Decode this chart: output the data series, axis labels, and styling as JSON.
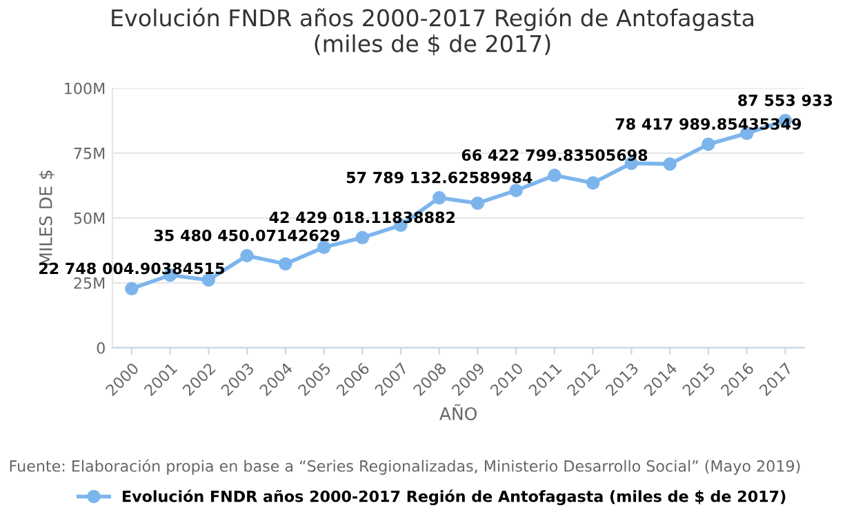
{
  "chart_data": {
    "type": "line",
    "title": "Evolución FNDR años 2000-2017 Región de Antofagasta\n(miles de $ de 2017)",
    "xlabel": "AÑO",
    "ylabel": "MILES DE $",
    "categories": [
      "2000",
      "2001",
      "2002",
      "2003",
      "2004",
      "2005",
      "2006",
      "2007",
      "2008",
      "2009",
      "2010",
      "2011",
      "2012",
      "2013",
      "2014",
      "2015",
      "2016",
      "2017"
    ],
    "series": [
      {
        "name": "Evolución FNDR años 2000-2017 Región de Antofagasta (miles de $ de 2017)",
        "color": "#7cb5ec",
        "values": [
          22748004.90384515,
          28000000,
          26100000,
          35480450.07142629,
          32300000,
          38700000,
          42429018.11838882,
          47200000,
          57789132.62589984,
          55700000,
          60600000,
          66422799.83505698,
          63500000,
          71100000,
          70800000,
          78417989.85435349,
          82600000,
          87553933
        ],
        "value_labels": [
          "22 748 004.90384515",
          null,
          null,
          "35 480 450.07142629",
          null,
          null,
          "42 429 018.11838882",
          null,
          "57 789 132.62589984",
          null,
          null,
          "66 422 799.83505698",
          null,
          null,
          null,
          "78 417 989.85435349",
          null,
          "87 553 933"
        ]
      }
    ],
    "ylim": [
      0,
      100000000
    ],
    "yticks": [
      {
        "value": 0,
        "label": "0"
      },
      {
        "value": 25000000,
        "label": "25M"
      },
      {
        "value": 50000000,
        "label": "50M"
      },
      {
        "value": 75000000,
        "label": "75M"
      },
      {
        "value": 100000000,
        "label": "100M"
      }
    ],
    "grid": "y",
    "legend": "bottom",
    "marker": "circle",
    "line_style": "solid",
    "annotations": [
      "Fuente: Elaboración propia en base a “Series Regionalizadas, Ministerio Desarrollo Social” (Mayo 2019)"
    ]
  }
}
